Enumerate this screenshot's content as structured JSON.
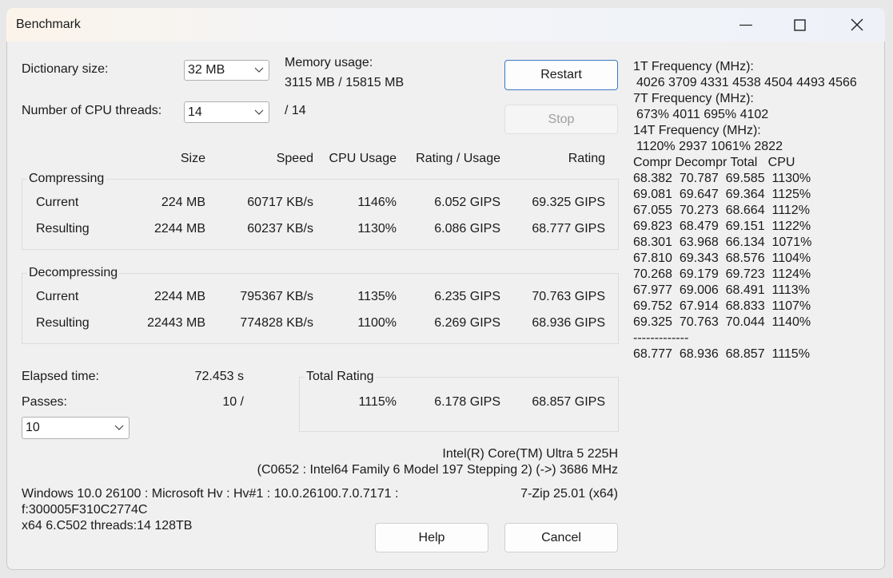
{
  "window": {
    "title": "Benchmark"
  },
  "settings": {
    "dictionary_label": "Dictionary size:",
    "dictionary_value": "32 MB",
    "memory_label": "Memory usage:",
    "memory_value": "3115 MB / 15815 MB",
    "threads_label": "Number of CPU threads:",
    "threads_value": "14",
    "threads_max": "/ 14"
  },
  "buttons": {
    "restart": "Restart",
    "stop": "Stop",
    "help": "Help",
    "cancel": "Cancel"
  },
  "table": {
    "headers": [
      "Size",
      "Speed",
      "CPU Usage",
      "Rating / Usage",
      "Rating"
    ],
    "groups": [
      {
        "name": "Compressing",
        "rows": [
          {
            "label": "Current",
            "cells": [
              "224 MB",
              "60717 KB/s",
              "1146%",
              "6.052 GIPS",
              "69.325 GIPS"
            ]
          },
          {
            "label": "Resulting",
            "cells": [
              "2244 MB",
              "60237 KB/s",
              "1130%",
              "6.086 GIPS",
              "68.777 GIPS"
            ]
          }
        ]
      },
      {
        "name": "Decompressing",
        "rows": [
          {
            "label": "Current",
            "cells": [
              "2244 MB",
              "795367 KB/s",
              "1135%",
              "6.235 GIPS",
              "70.763 GIPS"
            ]
          },
          {
            "label": "Resulting",
            "cells": [
              "22443 MB",
              "774828 KB/s",
              "1100%",
              "6.269 GIPS",
              "68.936 GIPS"
            ]
          }
        ]
      }
    ]
  },
  "elapsed": {
    "label": "Elapsed time:",
    "value": "72.453 s"
  },
  "passes": {
    "label": "Passes:",
    "value": "10 /",
    "select": "10"
  },
  "total": {
    "label": "Total Rating",
    "cells": [
      "1115%",
      "6.178 GIPS",
      "68.857 GIPS"
    ]
  },
  "cpu": [
    "Intel(R) Core(TM) Ultra 5 225H",
    "(C0652 : Intel64 Family 6 Model 197 Stepping 2) (->) 3686 MHz"
  ],
  "system": [
    "Windows 10.0 26100 : Microsoft Hv : Hv#1 : 10.0.26100.7.0.7171 :",
    "f:300005F310C2774C",
    "x64 6.C502 threads:14 128TB"
  ],
  "version": "7-Zip 25.01 (x64)",
  "log": {
    "frequencies": [
      {
        "label": "1T Frequency (MHz):",
        "values": "4026 3709 4331 4538 4504 4493 4566"
      },
      {
        "label": "7T Frequency (MHz):",
        "values": "673% 4011 695% 4102"
      },
      {
        "label": "14T Frequency (MHz):",
        "values": "1120% 2937 1061% 2822"
      }
    ],
    "header": "Compr Decompr Total   CPU",
    "rows": [
      "68.382  70.787  69.585  1130%",
      "69.081  69.647  69.364  1125%",
      "67.055  70.273  68.664  1112%",
      "69.823  68.479  69.151  1122%",
      "68.301  63.968  66.134  1071%",
      "67.810  69.343  68.576  1104%",
      "70.268  69.179  69.723  1124%",
      "67.977  69.006  68.491  1113%",
      "69.752  67.914  68.833  1107%",
      "69.325  70.763  70.044  1140%"
    ],
    "separator": "-------------",
    "total": "68.777  68.936  68.857  1115%"
  }
}
